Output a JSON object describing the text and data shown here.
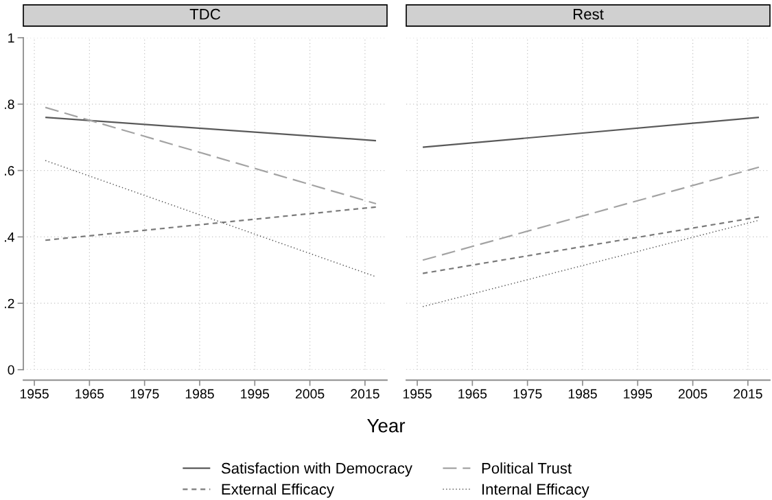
{
  "chart_data": [
    {
      "type": "line",
      "title": "TDC",
      "xlabel": "Year",
      "x": [
        1957,
        2017
      ],
      "series": [
        {
          "name": "Satisfaction with Democracy",
          "color": "#595959",
          "line_style": "solid",
          "values": [
            0.76,
            0.69
          ]
        },
        {
          "name": "Political Trust",
          "color": "#a3a3a3",
          "line_style": "longdash",
          "values": [
            0.79,
            0.5
          ]
        },
        {
          "name": "External Efficacy",
          "color": "#7a7a7a",
          "line_style": "dashed",
          "values": [
            0.39,
            0.49
          ]
        },
        {
          "name": "Internal Efficacy",
          "color": "#555555",
          "line_style": "dotted",
          "values": [
            0.63,
            0.28
          ]
        }
      ],
      "xlim": [
        1953,
        2019
      ],
      "ylim": [
        0,
        1
      ],
      "xticks": [
        1955,
        1965,
        1975,
        1985,
        1995,
        2005,
        2015
      ],
      "yticks": [
        0,
        {
          "value": 0.2,
          "label": ".2"
        },
        {
          "value": 0.4,
          "label": ".4"
        },
        {
          "value": 0.6,
          "label": ".6"
        },
        {
          "value": 0.8,
          "label": ".8"
        },
        1
      ],
      "grid": true,
      "legend": "bottom"
    },
    {
      "type": "line",
      "title": "Rest",
      "x": [
        1956,
        2017
      ],
      "series": [
        {
          "color": "#595959",
          "line_style": "solid",
          "values": [
            0.67,
            0.76
          ]
        },
        {
          "color": "#a3a3a3",
          "line_style": "longdash",
          "values": [
            0.33,
            0.61
          ]
        },
        {
          "color": "#7a7a7a",
          "line_style": "dashed",
          "values": [
            0.29,
            0.46
          ]
        },
        {
          "color": "#555555",
          "line_style": "dotted",
          "values": [
            0.19,
            0.45
          ]
        }
      ],
      "xlim": [
        1953,
        2019
      ],
      "ylim": [
        0,
        1
      ],
      "xticks": [
        1955,
        1965,
        1975,
        1985,
        1995,
        2005,
        2015
      ],
      "yticks": [
        0,
        0.2,
        0.4,
        0.6,
        0.8,
        1
      ],
      "grid": true,
      "tick_labels": "x"
    }
  ]
}
